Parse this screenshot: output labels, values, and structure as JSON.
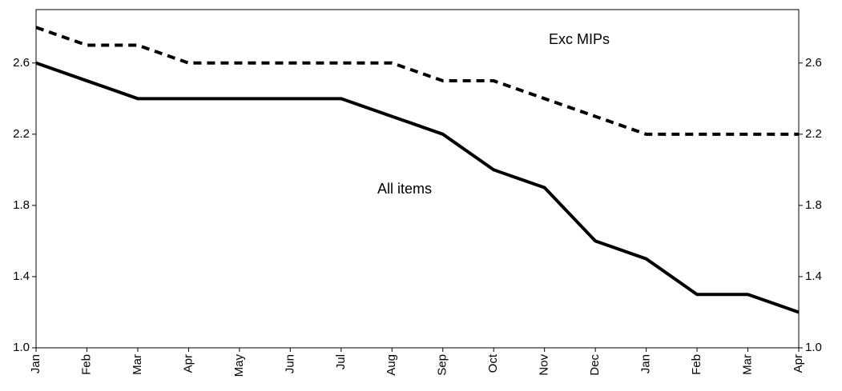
{
  "chart_data": {
    "type": "line",
    "categories": [
      "Jan",
      "Feb",
      "Mar",
      "Apr",
      "May",
      "Jun",
      "Jul",
      "Aug",
      "Sep",
      "Oct",
      "Nov",
      "Dec",
      "Jan",
      "Feb",
      "Mar",
      "Apr"
    ],
    "series": [
      {
        "name": "All items",
        "color": "#000000",
        "dash": false,
        "values": [
          2.6,
          2.5,
          2.4,
          2.4,
          2.4,
          2.4,
          2.4,
          2.3,
          2.2,
          2.0,
          1.9,
          1.6,
          1.5,
          1.3,
          1.3,
          1.2
        ]
      },
      {
        "name": "Exc MIPs",
        "color": "#000000",
        "dash": true,
        "values": [
          2.8,
          2.7,
          2.7,
          2.6,
          2.6,
          2.6,
          2.6,
          2.6,
          2.5,
          2.5,
          2.4,
          2.3,
          2.2,
          2.2,
          2.2,
          2.2
        ]
      }
    ],
    "ylim": [
      1.0,
      2.9
    ],
    "yticks": [
      {
        "value": 1,
        "label": "1.0"
      },
      1.4,
      1.8,
      2.2,
      2.6
    ],
    "y2lim": [
      1.0,
      2.9
    ],
    "y2ticks": [
      {
        "value": 1,
        "label": "1.0"
      },
      1.4,
      1.8,
      2.2,
      2.6
    ],
    "grid": false
  }
}
